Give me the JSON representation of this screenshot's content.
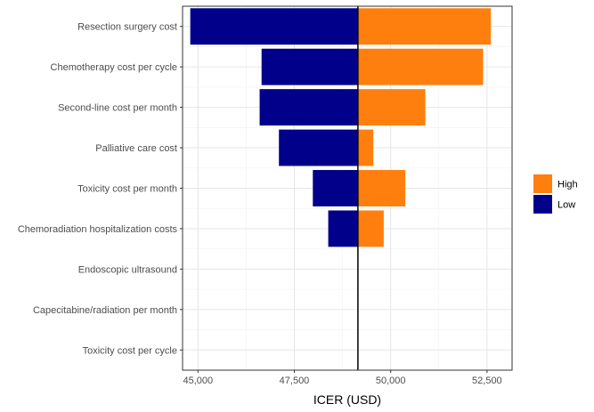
{
  "chart_data": {
    "type": "bar",
    "orientation": "horizontal",
    "subtype": "tornado",
    "xlabel": "ICER (USD)",
    "ylabel": "",
    "xlim": [
      44600,
      53150
    ],
    "x_ticks": [
      45000,
      47500,
      50000,
      52500
    ],
    "x_tick_labels": [
      "45,000",
      "47,500",
      "50,000",
      "52,500"
    ],
    "baseline": 49150,
    "grid": true,
    "legend_position": "right",
    "categories": [
      "Resection surgery cost",
      "Chemotherapy cost per cycle",
      "Second-line cost per month",
      "Palliative care cost",
      "Toxicity cost per month",
      "Chemoradiation hospitalization costs",
      "Endoscopic ultrasound",
      "Capecitabine/radiation per month",
      "Toxicity cost per cycle"
    ],
    "series": [
      {
        "name": "High",
        "color": "#ff7f0e",
        "values": [
          52600,
          52400,
          50900,
          49550,
          50380,
          49820,
          49150,
          49150,
          49150
        ]
      },
      {
        "name": "Low",
        "color": "#00008b",
        "values": [
          44800,
          46650,
          46600,
          47100,
          47980,
          48380,
          49150,
          49150,
          49150
        ]
      }
    ],
    "legend": [
      {
        "label": "High",
        "color": "#ff7f0e"
      },
      {
        "label": "Low",
        "color": "#00008b"
      }
    ]
  }
}
